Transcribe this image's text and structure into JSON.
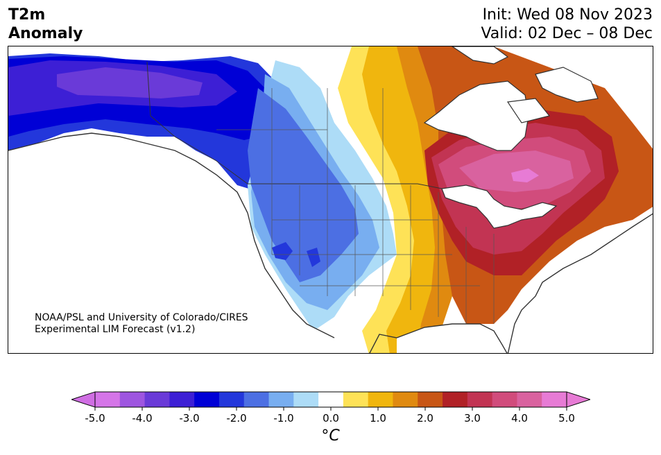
{
  "header": {
    "title_line1": "T2m",
    "title_line2": "Anomaly",
    "init_line": "Init: Wed 08 Nov 2023",
    "valid_line": "Valid: 02 Dec – 08 Dec"
  },
  "credit": {
    "line1": "NOAA/PSL and University of Colorado/CIRES",
    "line2": "Experimental LIM Forecast (v1.2)"
  },
  "colorbar": {
    "unit_label": "°C",
    "ticks": [
      "-5.0",
      "-4.0",
      "-3.0",
      "-2.0",
      "-1.0",
      "0.0",
      "1.0",
      "2.0",
      "3.0",
      "4.0",
      "5.0"
    ],
    "levels": [
      -5.0,
      -4.5,
      -4.0,
      -3.5,
      -3.0,
      -2.5,
      -2.0,
      -1.5,
      -1.0,
      -0.5,
      0.5,
      1.0,
      1.5,
      2.0,
      2.5,
      3.0,
      3.5,
      4.0,
      4.5,
      5.0
    ],
    "colors": [
      "#d575e8",
      "#9e55e0",
      "#6a3ad8",
      "#3d1fd5",
      "#0000d6",
      "#2337db",
      "#4c6fe3",
      "#78aef0",
      "#addcf7",
      "#ffffff",
      "#fee257",
      "#f0b60e",
      "#e08a10",
      "#c85615",
      "#b12126",
      "#c23453",
      "#d14c7c",
      "#d9629f",
      "#e77bd5"
    ],
    "under_color": "#d06ee3",
    "over_color": "#e77bd5",
    "extend": "both"
  },
  "map": {
    "region": "North America",
    "land_fill_default": "#ffffff",
    "water_color": "#ffffff"
  }
}
